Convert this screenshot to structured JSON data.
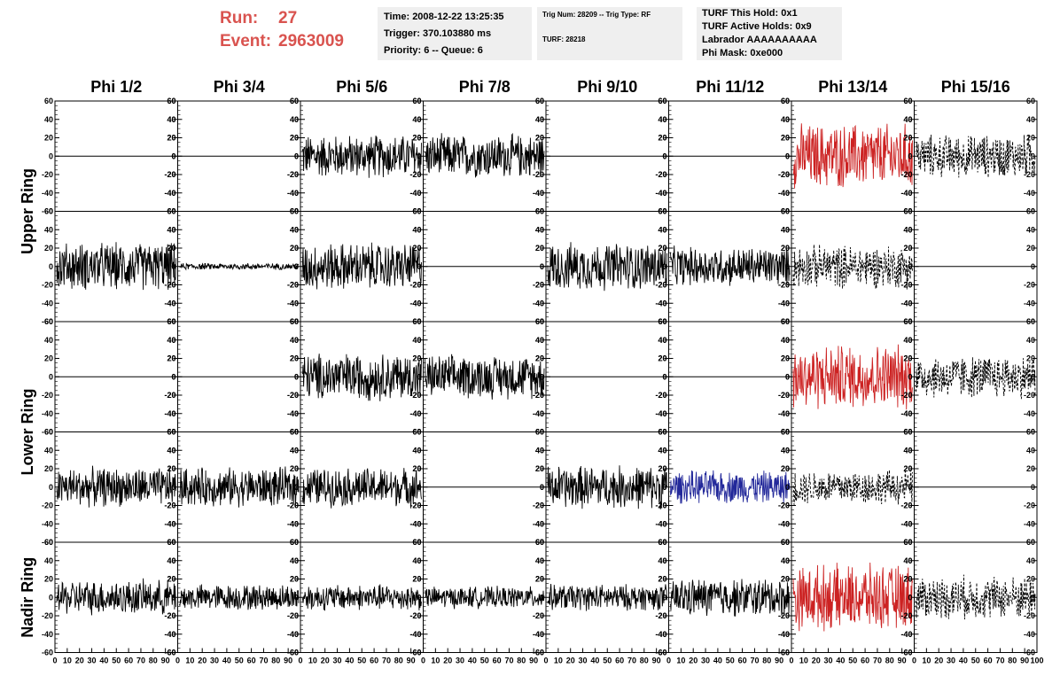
{
  "header": {
    "run_label": "Run:",
    "run_value": "27",
    "event_label": "Event:",
    "event_value": "2963009"
  },
  "info": {
    "time": "Time: 2008-12-22 13:25:35",
    "trigger": "Trigger: 370.103880 ms",
    "priority": "Priority: 6 -- Queue: 6",
    "trig_num": "Trig Num: 28209 -- Trig Type: RF",
    "turf": "TURF: 28218",
    "turf_hold": "TURF This Hold: 0x1",
    "turf_active": "TURF Active Holds: 0x9",
    "labrador": "Labrador AAAAAAAAAA",
    "phi_mask": "Phi Mask: 0xe000"
  },
  "colors": {
    "trace": "#000000",
    "red_trace": "#cc2222",
    "blue_trace": "#22289a",
    "header_red": "#d9534f"
  },
  "chart_data": {
    "type": "line",
    "columns": [
      "Phi 1/2",
      "Phi 3/4",
      "Phi 5/6",
      "Phi 7/8",
      "Phi 9/10",
      "Phi 11/12",
      "Phi 13/14",
      "Phi 15/16"
    ],
    "row_labels": [
      {
        "label": "Upper Ring",
        "rows": [
          0,
          1
        ]
      },
      {
        "label": "Lower Ring",
        "rows": [
          2,
          3
        ]
      },
      {
        "label": "Nadir Ring",
        "rows": [
          4
        ]
      }
    ],
    "ylim": [
      -60,
      60
    ],
    "yticks_major": [
      -60,
      -40,
      -20,
      0,
      20,
      40,
      60
    ],
    "xlim": [
      0,
      100
    ],
    "xtick_labels_bottom": [
      "0",
      "10",
      "20",
      "30",
      "40",
      "50",
      "60",
      "70",
      "80",
      "90",
      "100"
    ],
    "grid": false,
    "panels": [
      [
        "flat",
        "flat",
        "noise",
        "noise",
        "flat",
        "flat",
        "noise-red",
        "dashed"
      ],
      [
        "noise",
        "small",
        "noise",
        "flat",
        "noise",
        "noise",
        "dashed",
        "flat"
      ],
      [
        "flat",
        "flat",
        "noise",
        "noise",
        "flat",
        "flat",
        "noise-red",
        "dashed"
      ],
      [
        "noise",
        "noise",
        "noise",
        "flat",
        "noise",
        "noise-blue",
        "dashed",
        "flat"
      ],
      [
        "noise",
        "noise",
        "noise",
        "noise",
        "noise",
        "noise",
        "noise-red",
        "dashed"
      ]
    ],
    "amplitudes": [
      [
        0,
        0,
        20,
        20,
        0,
        0,
        30,
        20
      ],
      [
        22,
        3,
        22,
        0,
        22,
        18,
        20,
        0
      ],
      [
        0,
        0,
        22,
        20,
        0,
        0,
        30,
        20
      ],
      [
        18,
        18,
        18,
        0,
        20,
        15,
        16,
        0
      ],
      [
        16,
        12,
        12,
        10,
        12,
        18,
        30,
        20
      ]
    ]
  }
}
